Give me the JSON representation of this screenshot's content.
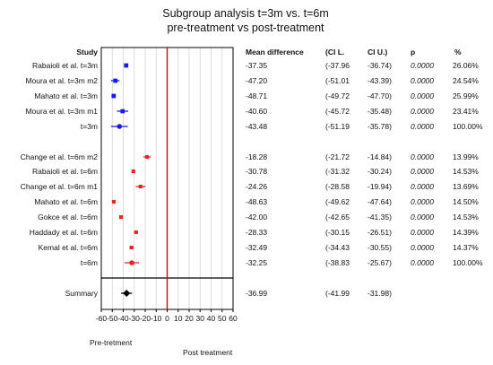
{
  "chart_data": {
    "type": "forest",
    "title": "Subgroup analysis t=3m vs. t=6m",
    "subtitle": "pre-treatment vs post-treatment",
    "headers": {
      "study": "Study",
      "mean_difference": "Mean difference",
      "ci_low": "(CI L.",
      "ci_high": "CI U.)",
      "p": "p",
      "weight": "%"
    },
    "xlim": [
      -60,
      60
    ],
    "xticks": [
      "-60",
      "-50",
      "-40",
      "-30",
      "-20",
      "-10",
      "0",
      "10",
      "20",
      "30",
      "40",
      "50",
      "60"
    ],
    "xlabel_left": "Pre-tretment",
    "xlabel_right": "Post treatment",
    "groups": [
      {
        "color": "#1a1aff",
        "rows": [
          {
            "study": "Rabaioli et al. t=3m",
            "md": "-37.35",
            "lo": "(-37.96",
            "hi": "-36.74)",
            "p": "0.0000",
            "w": "26.06%",
            "md_v": -37.35,
            "lo_v": -37.96,
            "hi_v": -36.74,
            "w_v": 26.06
          },
          {
            "study": "Moura et al. t=3m m2",
            "md": "-47.20",
            "lo": "(-51.01",
            "hi": "-43.39)",
            "p": "0.0000",
            "w": "24.54%",
            "md_v": -47.2,
            "lo_v": -51.01,
            "hi_v": -43.39,
            "w_v": 24.54
          },
          {
            "study": "Mahato et al. t=3m",
            "md": "-48.71",
            "lo": "(-49.72",
            "hi": "-47.70)",
            "p": "0.0000",
            "w": "25.99%",
            "md_v": -48.71,
            "lo_v": -49.72,
            "hi_v": -47.7,
            "w_v": 25.99
          },
          {
            "study": "Moura et al. t=3m m1",
            "md": "-40.60",
            "lo": "(-45.72",
            "hi": "-35.48)",
            "p": "0.0000",
            "w": "23.41%",
            "md_v": -40.6,
            "lo_v": -45.72,
            "hi_v": -35.48,
            "w_v": 23.41
          },
          {
            "study": "t=3m",
            "md": "-43.48",
            "lo": "(-51.19",
            "hi": "-35.78)",
            "p": "0.0000",
            "w": "100.00%",
            "md_v": -43.48,
            "lo_v": -51.19,
            "hi_v": -35.78,
            "w_v": 0,
            "pooled": true
          }
        ]
      },
      {
        "color": "#ee2222",
        "rows": [
          {
            "study": "Change et al. t=6m m2",
            "md": "-18.28",
            "lo": "(-21.72",
            "hi": "-14.84)",
            "p": "0.0000",
            "w": "13.99%",
            "md_v": -18.28,
            "lo_v": -21.72,
            "hi_v": -14.84,
            "w_v": 13.99
          },
          {
            "study": "Rabaioli et al. t=6m",
            "md": "-30.78",
            "lo": "(-31.32",
            "hi": "-30.24)",
            "p": "0.0000",
            "w": "14.53%",
            "md_v": -30.78,
            "lo_v": -31.32,
            "hi_v": -30.24,
            "w_v": 14.53
          },
          {
            "study": "Change et al. t=6m m1",
            "md": "-24.26",
            "lo": "(-28.58",
            "hi": "-19.94)",
            "p": "0.0000",
            "w": "13.69%",
            "md_v": -24.26,
            "lo_v": -28.58,
            "hi_v": -19.94,
            "w_v": 13.69
          },
          {
            "study": "Mahato et al. t=6m",
            "md": "-48.63",
            "lo": "(-49.62",
            "hi": "-47.64)",
            "p": "0.0000",
            "w": "14.50%",
            "md_v": -48.63,
            "lo_v": -49.62,
            "hi_v": -47.64,
            "w_v": 14.5
          },
          {
            "study": "Gokce et al. t=6m",
            "md": "-42.00",
            "lo": "(-42.65",
            "hi": "-41.35)",
            "p": "0.0000",
            "w": "14.53%",
            "md_v": -42.0,
            "lo_v": -42.65,
            "hi_v": -41.35,
            "w_v": 14.53
          },
          {
            "study": "Haddady et al. t=6m",
            "md": "-28.33",
            "lo": "(-30.15",
            "hi": "-26.51)",
            "p": "0.0000",
            "w": "14.39%",
            "md_v": -28.33,
            "lo_v": -30.15,
            "hi_v": -26.51,
            "w_v": 14.39
          },
          {
            "study": "Kemal et al. t=6m",
            "md": "-32.49",
            "lo": "(-34.43",
            "hi": "-30.55)",
            "p": "0.0000",
            "w": "14.37%",
            "md_v": -32.49,
            "lo_v": -34.43,
            "hi_v": -30.55,
            "w_v": 14.37
          },
          {
            "study": "t=6m",
            "md": "-32.25",
            "lo": "(-38.83",
            "hi": "-25.67)",
            "p": "0.0000",
            "w": "100.00%",
            "md_v": -32.25,
            "lo_v": -38.83,
            "hi_v": -25.67,
            "w_v": 0,
            "pooled": true
          }
        ]
      }
    ],
    "summary": {
      "study": "Summary",
      "md": "-36.99",
      "lo": "(-41.99",
      "hi": "-31.98)",
      "md_v": -36.99,
      "lo_v": -41.99,
      "hi_v": -31.98,
      "color": "#000000"
    },
    "zero_line_color": "#dd0000",
    "grid": true
  }
}
